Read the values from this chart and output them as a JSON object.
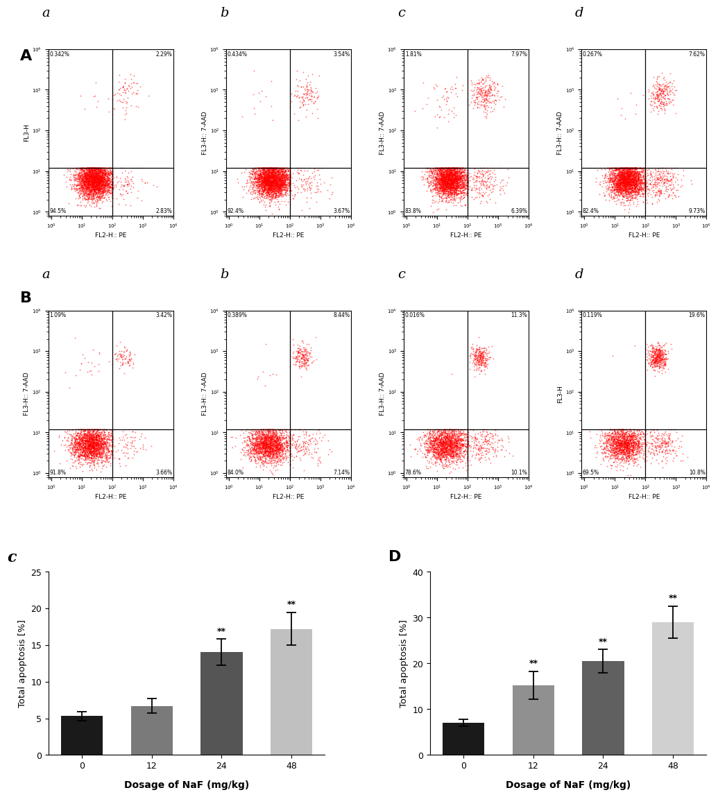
{
  "panel_A_label": "A",
  "panel_B_label": "B",
  "panel_C_label": "c",
  "panel_D_label": "D",
  "scatter_labels_A": [
    "a",
    "b",
    "c",
    "d"
  ],
  "scatter_labels_B": [
    "a",
    "b",
    "c",
    "d"
  ],
  "quadrant_stats_A": [
    {
      "UL": "0.342%",
      "UR": "2.29%",
      "LL": "94.5%",
      "LR": "2.83%"
    },
    {
      "UL": "0.434%",
      "UR": "3.54%",
      "LL": "92.4%",
      "LR": "3.67%"
    },
    {
      "UL": "1.81%",
      "UR": "7.97%",
      "LL": "83.8%",
      "LR": "6.39%"
    },
    {
      "UL": "0.267%",
      "UR": "7.62%",
      "LL": "82.4%",
      "LR": "9.73%"
    }
  ],
  "quadrant_stats_B": [
    {
      "UL": "1.09%",
      "UR": "3.42%",
      "LL": "91.8%",
      "LR": "3.66%"
    },
    {
      "UL": "0.389%",
      "UR": "8.44%",
      "LL": "84.0%",
      "LR": "7.14%"
    },
    {
      "UL": "0.016%",
      "UR": "11.3%",
      "LL": "78.6%",
      "LR": "10.1%"
    },
    {
      "UL": "0.119%",
      "UR": "19.6%",
      "LL": "69.5%",
      "LR": "10.8%"
    }
  ],
  "xlabel_scatter": "FL2-H:: PE",
  "ylabel_scatter_A0": "FL3-H",
  "ylabel_scatter": "FL3-H:: 7-AAD",
  "ylabel_scatter_Bd": "FL3-H",
  "bar_categories": [
    "0",
    "12",
    "24",
    "48"
  ],
  "bar_xlabel": "Dosage of NaF (mg/kg)",
  "bar_ylabel": "Total apoptosis [%]",
  "C_values": [
    5.3,
    6.7,
    14.0,
    17.2
  ],
  "C_errors": [
    0.6,
    1.0,
    1.8,
    2.2
  ],
  "C_ylim": [
    0,
    25
  ],
  "C_yticks": [
    0,
    5,
    10,
    15,
    20,
    25
  ],
  "C_sig": [
    false,
    false,
    true,
    true
  ],
  "D_values": [
    7.0,
    15.2,
    20.5,
    29.0
  ],
  "D_errors": [
    0.8,
    3.0,
    2.5,
    3.5
  ],
  "D_ylim": [
    0,
    40
  ],
  "D_yticks": [
    0,
    10,
    20,
    30,
    40
  ],
  "D_sig": [
    false,
    true,
    true,
    true
  ],
  "bar_colors_C": [
    "#1a1a1a",
    "#7a7a7a",
    "#555555",
    "#c0c0c0"
  ],
  "bar_colors_D": [
    "#1a1a1a",
    "#909090",
    "#606060",
    "#d0d0d0"
  ],
  "scatter_dot_color": "#ff0000",
  "scatter_dot_alpha": 0.6,
  "scatter_dot_size": 1.5,
  "background_color": "#ffffff",
  "xdivide": 100.0,
  "ydivide": 12.0,
  "xmin": 0.8,
  "xmax": 10000.0,
  "ymin": 0.8,
  "ymax": 10000.0
}
